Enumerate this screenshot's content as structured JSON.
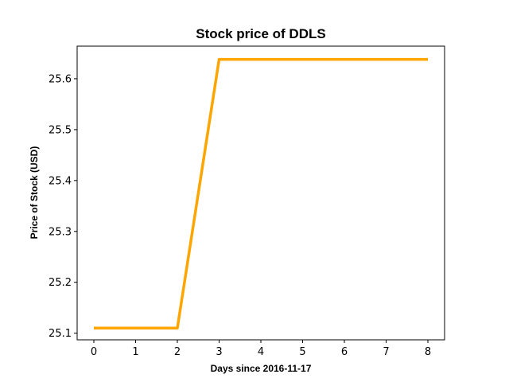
{
  "chart_data": {
    "type": "line",
    "title": "Stock price of DDLS",
    "xlabel": "Days since 2016-11-17",
    "ylabel": "Price of Stock (USD)",
    "x": [
      0,
      1,
      2,
      3,
      4,
      5,
      6,
      7,
      8
    ],
    "series": [
      {
        "values": [
          25.11,
          25.11,
          25.11,
          25.638,
          25.638,
          25.638,
          25.638,
          25.638,
          25.638
        ],
        "color": "#FFA500"
      }
    ],
    "xlim": [
      -0.4,
      8.4
    ],
    "ylim": [
      25.087,
      25.664
    ],
    "xticks": [
      0,
      1,
      2,
      3,
      4,
      5,
      6,
      7,
      8
    ],
    "yticks": [
      25.1,
      25.2,
      25.3,
      25.4,
      25.5,
      25.6
    ],
    "grid": false
  }
}
